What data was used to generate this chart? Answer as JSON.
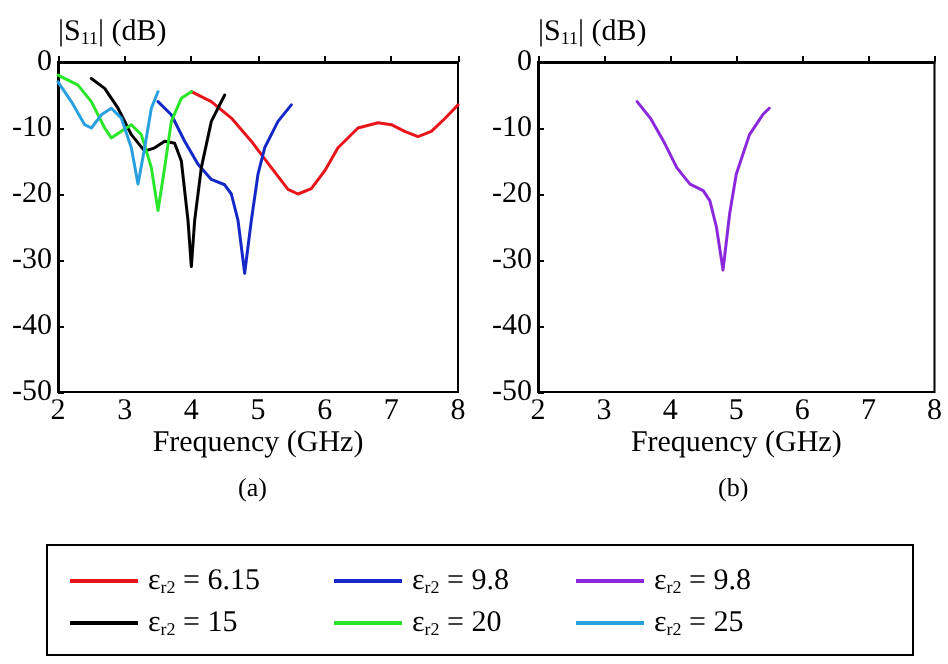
{
  "chart_data": [
    {
      "type": "line",
      "ylabel": "|S$_{11}$| (dB)",
      "xlabel": "Frequency (GHz)",
      "annotations": [
        "(a)"
      ],
      "xlim": [
        2,
        8
      ],
      "xticks": [
        2,
        3,
        4,
        5,
        6,
        7,
        8
      ],
      "ylim": [
        -50,
        0
      ],
      "yticks": [
        -50,
        -40,
        -30,
        -20,
        -10,
        0
      ],
      "grid": false,
      "legend": "bottom",
      "marker": "none",
      "line_style": "solid",
      "series": [
        {
          "name": "ε$_{r2}$ = 6.15",
          "color": "#e8141a",
          "x": [
            4.0,
            4.3,
            4.6,
            4.9,
            5.2,
            5.45,
            5.6,
            5.8,
            6.0,
            6.2,
            6.5,
            6.8,
            7.0,
            7.2,
            7.4,
            7.6,
            7.8,
            8.0
          ],
          "values": [
            -4.5,
            -6,
            -8.5,
            -12,
            -16,
            -19.3,
            -20,
            -19.2,
            -16.5,
            -13,
            -10,
            -9.2,
            -9.5,
            -10.5,
            -11.3,
            -10.5,
            -8.6,
            -6.5
          ]
        },
        {
          "name": "ε$_{r2}$ = 9.8",
          "color": "#1428c8",
          "x": [
            3.5,
            3.7,
            3.9,
            4.1,
            4.3,
            4.5,
            4.6,
            4.7,
            4.8,
            4.9,
            5.0,
            5.1,
            5.3,
            5.5
          ],
          "values": [
            -6,
            -8,
            -12,
            -15.5,
            -17.8,
            -18.6,
            -20,
            -24,
            -32,
            -24,
            -17,
            -13,
            -9,
            -6.5
          ]
        },
        {
          "name": "ε$_{r2}$ = 15",
          "color": "#000000",
          "x": [
            2.5,
            2.7,
            2.9,
            3.1,
            3.3,
            3.45,
            3.6,
            3.75,
            3.85,
            3.95,
            4.0,
            4.05,
            4.15,
            4.3,
            4.5
          ],
          "values": [
            -2.5,
            -4,
            -7,
            -11,
            -13.5,
            -13,
            -12,
            -12.3,
            -15,
            -24,
            -31,
            -24,
            -16,
            -9,
            -5
          ]
        },
        {
          "name": "ε$_{r2}$ = 20",
          "color": "#28e628",
          "x": [
            2.0,
            2.3,
            2.5,
            2.7,
            2.8,
            2.95,
            3.1,
            3.25,
            3.4,
            3.5,
            3.6,
            3.7,
            3.85,
            4.0
          ],
          "values": [
            -2,
            -3.5,
            -6,
            -10,
            -11.5,
            -10.5,
            -9.5,
            -11,
            -16,
            -22.5,
            -16,
            -9,
            -5.5,
            -4.5
          ]
        },
        {
          "name": "ε$_{r2}$ = 25",
          "color": "#28a0e0",
          "x": [
            2.0,
            2.2,
            2.4,
            2.5,
            2.65,
            2.8,
            2.95,
            3.1,
            3.2,
            3.3,
            3.4,
            3.5
          ],
          "values": [
            -3,
            -6,
            -9.5,
            -10,
            -8,
            -7,
            -8.5,
            -13,
            -18.5,
            -13,
            -7,
            -4.5
          ]
        }
      ]
    },
    {
      "type": "line",
      "ylabel": "|S$_{11}$| (dB)",
      "xlabel": "Frequency (GHz)",
      "annotations": [
        "(b)"
      ],
      "xlim": [
        2,
        8
      ],
      "xticks": [
        2,
        3,
        4,
        5,
        6,
        7,
        8
      ],
      "ylim": [
        -50,
        0
      ],
      "yticks": [
        -50,
        -40,
        -30,
        -20,
        -10,
        0
      ],
      "grid": false,
      "legend": "bottom",
      "marker": "none",
      "line_style": "solid",
      "series": [
        {
          "name": "ε$_{r2}$ = 9.8",
          "color": "#8c28dc",
          "x": [
            3.5,
            3.7,
            3.9,
            4.1,
            4.3,
            4.5,
            4.6,
            4.7,
            4.8,
            4.9,
            5.0,
            5.2,
            5.4,
            5.5
          ],
          "values": [
            -6,
            -8.5,
            -12,
            -16,
            -18.5,
            -19.5,
            -21,
            -25,
            -31.5,
            -23,
            -17,
            -11,
            -8,
            -7
          ]
        }
      ]
    }
  ]
}
